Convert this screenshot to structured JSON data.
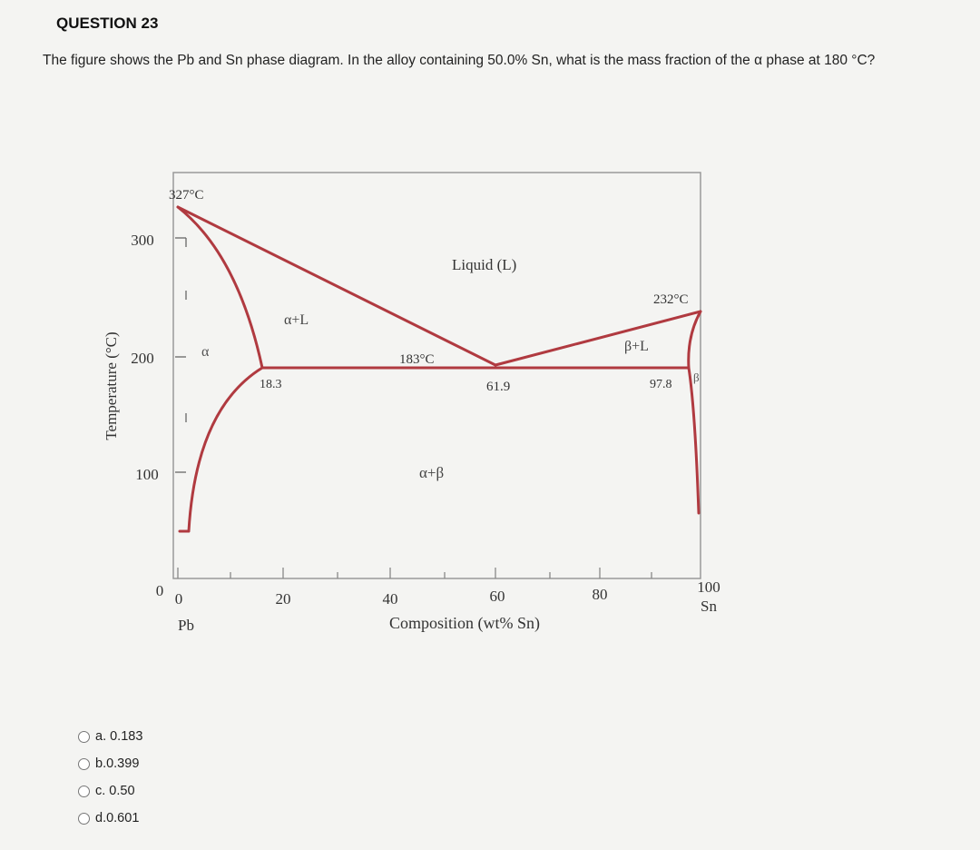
{
  "question": {
    "title": "QUESTION 23",
    "text": "The figure shows the Pb and Sn phase diagram. In the alloy containing 50.0% Sn, what is the mass fraction of the α phase at 180 °C?"
  },
  "diagram": {
    "y_axis_label": "Temperature (°C)",
    "x_axis_label": "Composition (wt% Sn)",
    "y_ticks": [
      "300",
      "200",
      "100",
      "0"
    ],
    "x_ticks": [
      "0",
      "20",
      "40",
      "60",
      "80",
      "100"
    ],
    "x_left_element": "Pb",
    "x_right_element": "Sn",
    "labels": {
      "pb_melt": "327°C",
      "sn_melt": "232°C",
      "eutectic_temp": "183°C",
      "alpha_limit": "18.3",
      "eutectic_comp": "61.9",
      "beta_limit": "97.8",
      "liquid": "Liquid (L)",
      "alpha_liquid": "α+L",
      "beta_liquid": "β+L",
      "alpha": "α",
      "beta": "β",
      "alpha_beta": "α+β"
    },
    "line_color": "#b03a40"
  },
  "answers": [
    {
      "label": "a. 0.183"
    },
    {
      "label": "b.0.399"
    },
    {
      "label": "c. 0.50"
    },
    {
      "label": "d.0.601"
    }
  ]
}
